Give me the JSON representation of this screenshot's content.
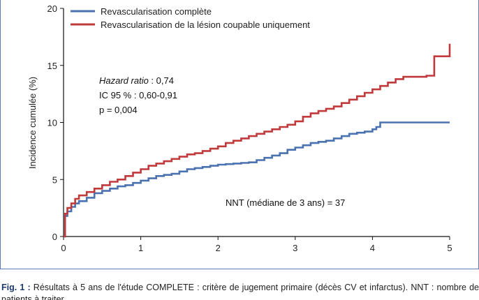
{
  "chart_data": {
    "type": "line",
    "ylabel": "Incidence cumulée (%)",
    "xlim": [
      0,
      5
    ],
    "ylim": [
      0,
      20
    ],
    "x_ticks": [
      "0",
      "1",
      "2",
      "3",
      "4",
      "5"
    ],
    "y_ticks": [
      "0",
      "5",
      "10",
      "15",
      "20"
    ],
    "grid": false,
    "legend_position": "top-left",
    "series": [
      {
        "name": "Revascularisation complète",
        "color": "#4a72b0",
        "step": true,
        "x": [
          0,
          0.02,
          0.05,
          0.1,
          0.15,
          0.2,
          0.3,
          0.4,
          0.5,
          0.6,
          0.7,
          0.8,
          0.9,
          1.0,
          1.1,
          1.2,
          1.3,
          1.4,
          1.5,
          1.6,
          1.7,
          1.8,
          1.9,
          2.0,
          2.1,
          2.2,
          2.3,
          2.4,
          2.5,
          2.6,
          2.7,
          2.8,
          2.9,
          3.0,
          3.1,
          3.2,
          3.3,
          3.4,
          3.5,
          3.6,
          3.7,
          3.8,
          3.9,
          4.0,
          4.05,
          4.1,
          4.5,
          5.0
        ],
        "y": [
          0,
          1.8,
          2.2,
          2.6,
          2.9,
          3.1,
          3.4,
          3.8,
          4.0,
          4.2,
          4.4,
          4.5,
          4.7,
          4.9,
          5.1,
          5.3,
          5.4,
          5.5,
          5.7,
          5.9,
          6.0,
          6.1,
          6.2,
          6.3,
          6.35,
          6.4,
          6.45,
          6.5,
          6.7,
          6.9,
          7.1,
          7.3,
          7.6,
          7.8,
          8.0,
          8.2,
          8.3,
          8.4,
          8.6,
          8.8,
          9.0,
          9.1,
          9.2,
          9.4,
          9.6,
          10.0,
          10.0,
          10.0
        ]
      },
      {
        "name": "Revascularisation de la lésion coupable uniquement",
        "color": "#c0393b",
        "step": true,
        "x": [
          0,
          0.02,
          0.05,
          0.1,
          0.15,
          0.2,
          0.3,
          0.4,
          0.5,
          0.6,
          0.7,
          0.8,
          0.9,
          1.0,
          1.1,
          1.2,
          1.3,
          1.4,
          1.5,
          1.6,
          1.7,
          1.8,
          1.9,
          2.0,
          2.1,
          2.2,
          2.3,
          2.4,
          2.5,
          2.6,
          2.7,
          2.8,
          2.9,
          3.0,
          3.1,
          3.2,
          3.3,
          3.4,
          3.5,
          3.6,
          3.7,
          3.8,
          3.9,
          4.0,
          4.1,
          4.2,
          4.3,
          4.4,
          4.5,
          4.6,
          4.7,
          4.8,
          4.9,
          5.0
        ],
        "y": [
          0,
          2.0,
          2.5,
          2.9,
          3.3,
          3.6,
          3.9,
          4.2,
          4.5,
          4.8,
          5.0,
          5.3,
          5.6,
          5.9,
          6.2,
          6.4,
          6.6,
          6.8,
          7.0,
          7.2,
          7.3,
          7.5,
          7.7,
          7.9,
          8.2,
          8.4,
          8.6,
          8.8,
          9.0,
          9.2,
          9.4,
          9.6,
          9.8,
          10.1,
          10.5,
          10.8,
          11.0,
          11.2,
          11.4,
          11.7,
          12.0,
          12.3,
          12.6,
          12.9,
          13.2,
          13.5,
          13.8,
          14.0,
          14.0,
          14.0,
          14.1,
          15.8,
          15.8,
          16.9
        ]
      }
    ],
    "annotations": {
      "hazard_label": "Hazard ratio",
      "hazard_value": " : 0,74",
      "ci": "IC 95 % : 0,60-0,91",
      "p": "p = 0,004",
      "nnt": "NNT (médiane de 3 ans) = 37"
    }
  },
  "caption": {
    "label": "Fig. 1 :",
    "text": " Résultats à 5 ans de l'étude COMPLETE : critère de jugement primaire (décès CV et infarctus). NNT : nombre de patients à traiter."
  }
}
